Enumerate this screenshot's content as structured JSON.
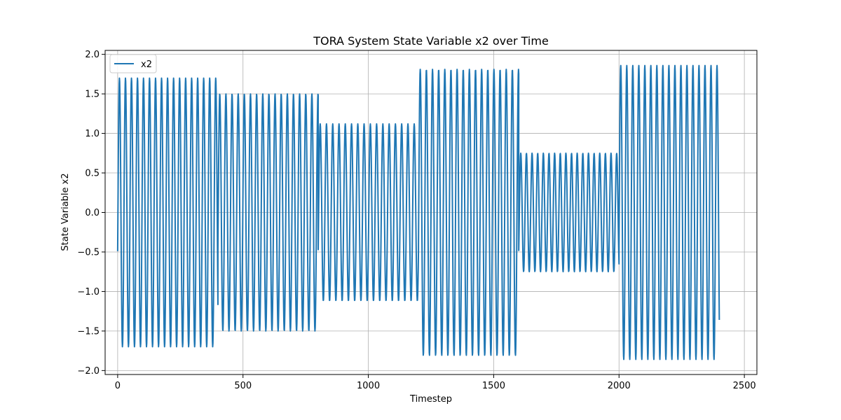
{
  "chart_data": {
    "type": "line",
    "title": "TORA System State Variable x2 over Time",
    "xlabel": "Timestep",
    "ylabel": "State Variable x2",
    "xlim": [
      -50,
      2550
    ],
    "ylim": [
      -2.05,
      2.05
    ],
    "xticks": [
      0,
      500,
      1000,
      1500,
      2000,
      2500
    ],
    "yticks": [
      -2.0,
      -1.5,
      -1.0,
      -0.5,
      0.0,
      0.5,
      1.0,
      1.5,
      2.0
    ],
    "xtick_labels": [
      "0",
      "500",
      "1000",
      "1500",
      "2000",
      "2500"
    ],
    "ytick_labels": [
      "−2.0",
      "−1.5",
      "−1.0",
      "−0.5",
      "0.0",
      "0.5",
      "1.0",
      "1.5",
      "2.0"
    ],
    "grid": true,
    "legend": "top-left",
    "series": [
      {
        "name": "x2",
        "color": "#1f77b4",
        "pattern": "piecewise oscillation; each segment starts at its start_value and oscillates with the given amplitude and period",
        "segments": [
          {
            "x_start": 0,
            "x_end": 400,
            "amplitude": 1.7,
            "period": 24.0,
            "start_value": -0.49
          },
          {
            "x_start": 400,
            "x_end": 800,
            "amplitude": 1.5,
            "period": 24.5,
            "start_value": -0.46
          },
          {
            "x_start": 800,
            "x_end": 1200,
            "amplitude": 1.12,
            "period": 25.0,
            "start_value": -0.47
          },
          {
            "x_start": 1200,
            "x_end": 1600,
            "amplitude": 1.81,
            "period": 24.5,
            "start_value": -0.41
          },
          {
            "x_start": 1600,
            "x_end": 2000,
            "amplitude": 0.75,
            "period": 22.5,
            "start_value": -0.48
          },
          {
            "x_start": 2000,
            "x_end": 2400,
            "amplitude": 1.86,
            "period": 24.0,
            "start_value": -0.42
          }
        ]
      }
    ]
  }
}
